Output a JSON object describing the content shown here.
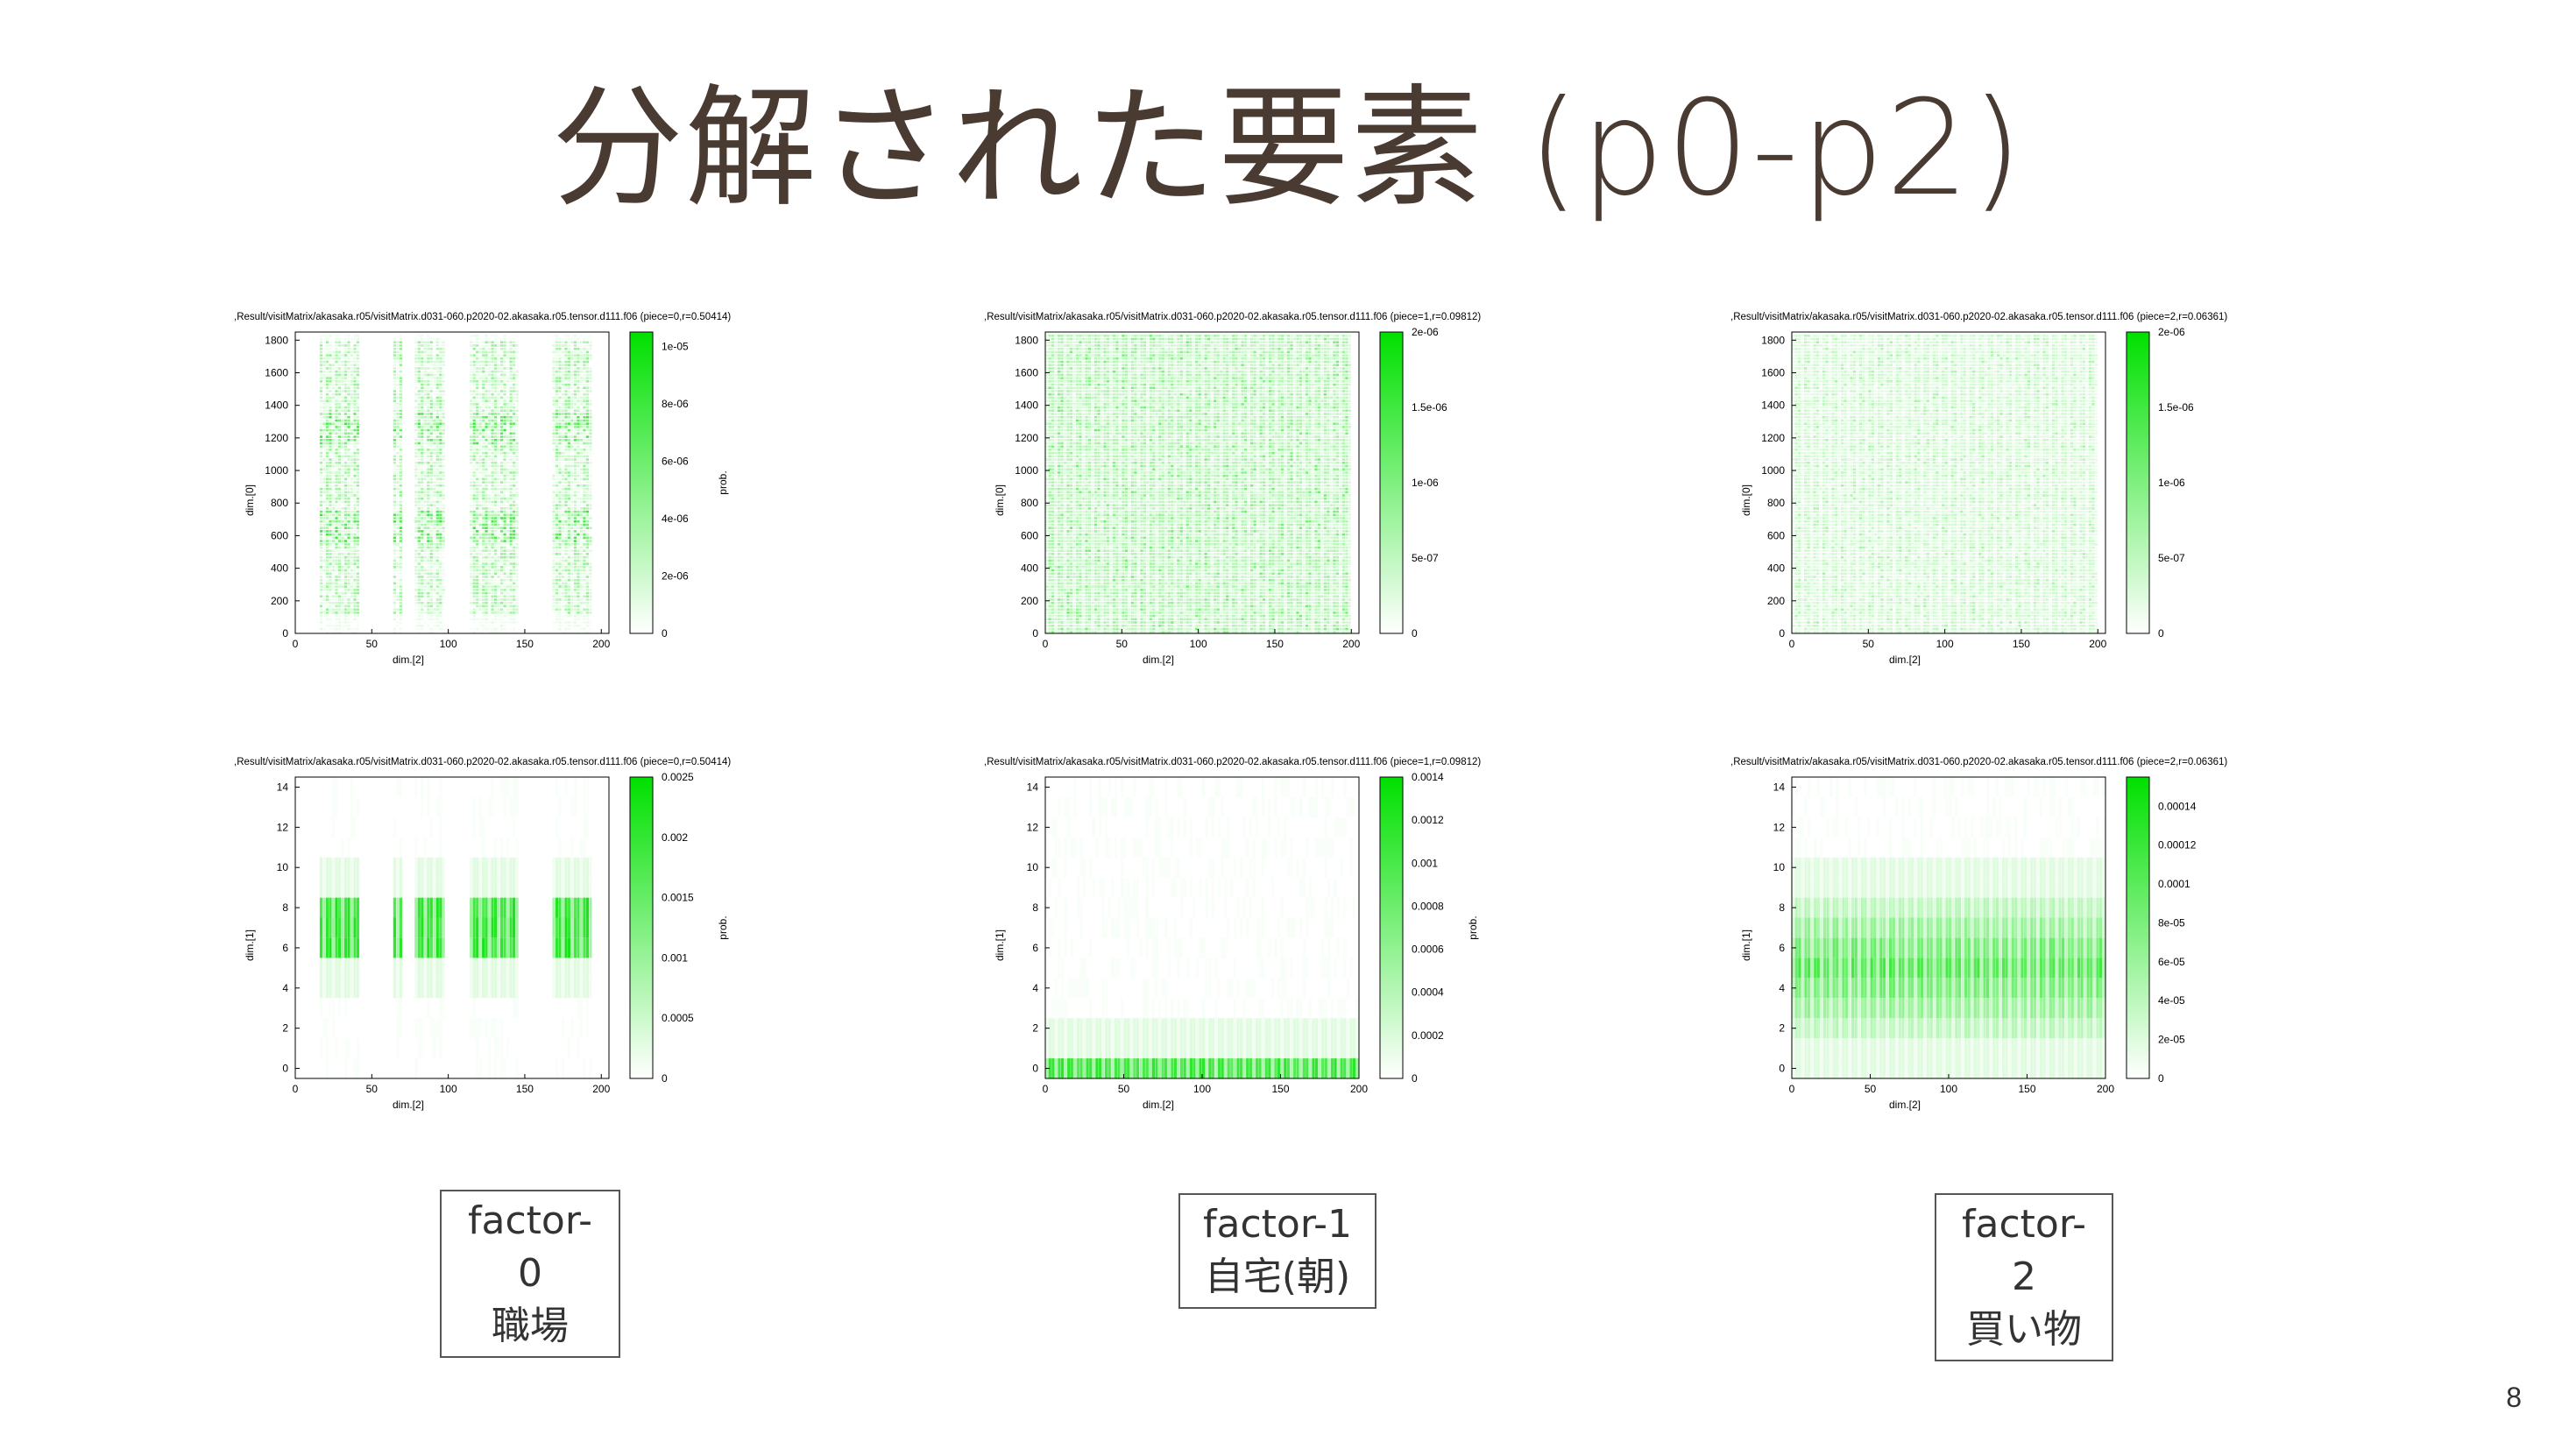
{
  "slide": {
    "title": "分解された要素 (p0-p2)",
    "page_number": "8"
  },
  "colors": {
    "heat_max": "#00e000",
    "heat_min": "#ffffff",
    "title": "#4a3b32"
  },
  "labels": [
    {
      "line1": "factor-0",
      "line2": "職場"
    },
    {
      "line1": "factor-1",
      "line2": "自宅(朝)"
    },
    {
      "line1": "factor-2",
      "line2": "買い物"
    }
  ],
  "chart_data": [
    {
      "type": "heatmap",
      "title": ",Result/visitMatrix/akasaka.r05/visitMatrix.d031-060.p2020-02.akasaka.r05.tensor.d111.f06 (piece=0,r=0.50414)",
      "xlabel": "dim.[2]",
      "ylabel": "dim.[0]",
      "colorbar_label": "prob.",
      "xlim": [
        0,
        205
      ],
      "ylim": [
        0,
        1850
      ],
      "xticks": [
        "0",
        "50",
        "100",
        "150",
        "200"
      ],
      "xtick_values": [
        0,
        50,
        100,
        150,
        200
      ],
      "yticks": [
        "0",
        "200",
        "400",
        "600",
        "800",
        "1000",
        "1200",
        "1400",
        "1600",
        "1800"
      ],
      "ytick_values": [
        0,
        200,
        400,
        600,
        800,
        1000,
        1200,
        1400,
        1600,
        1800
      ],
      "colorbar_ticks": [
        "1e-05",
        "8e-06",
        "6e-06",
        "4e-06",
        "2e-06",
        "0"
      ],
      "colorbar_values": [
        1e-05,
        8e-06,
        6e-06,
        4e-06,
        2e-06,
        0
      ],
      "colorbar_max": 1.05e-05,
      "column_groups": [
        [
          15,
          40
        ],
        [
          63,
          68
        ],
        [
          77,
          96
        ],
        [
          114,
          145
        ],
        [
          168,
          193
        ]
      ],
      "column_intensity": 0.55,
      "pattern": "striped-rows"
    },
    {
      "type": "heatmap",
      "title": ",Result/visitMatrix/akasaka.r05/visitMatrix.d031-060.p2020-02.akasaka.r05.tensor.d111.f06 (piece=1,r=0.09812)",
      "xlabel": "dim.[2]",
      "ylabel": "dim.[0]",
      "colorbar_label": "",
      "xlim": [
        0,
        205
      ],
      "ylim": [
        0,
        1850
      ],
      "xticks": [
        "0",
        "50",
        "100",
        "150",
        "200"
      ],
      "xtick_values": [
        0,
        50,
        100,
        150,
        200
      ],
      "yticks": [
        "0",
        "200",
        "400",
        "600",
        "800",
        "1000",
        "1200",
        "1400",
        "1600",
        "1800"
      ],
      "ytick_values": [
        0,
        200,
        400,
        600,
        800,
        1000,
        1200,
        1400,
        1600,
        1800
      ],
      "colorbar_ticks": [
        "2e-06",
        "1.5e-06",
        "1e-06",
        "5e-07",
        "0"
      ],
      "colorbar_values": [
        2e-06,
        1.5e-06,
        1e-06,
        5e-07,
        0
      ],
      "colorbar_max": 2e-06,
      "column_groups": [
        [
          0,
          200
        ]
      ],
      "column_intensity": 0.35,
      "pattern": "uniform-columns"
    },
    {
      "type": "heatmap",
      "title": ",Result/visitMatrix/akasaka.r05/visitMatrix.d031-060.p2020-02.akasaka.r05.tensor.d111.f06 (piece=2,r=0.06361)",
      "xlabel": "dim.[2]",
      "ylabel": "dim.[0]",
      "colorbar_label": "",
      "xlim": [
        0,
        205
      ],
      "ylim": [
        0,
        1850
      ],
      "xticks": [
        "0",
        "50",
        "100",
        "150",
        "200"
      ],
      "xtick_values": [
        0,
        50,
        100,
        150,
        200
      ],
      "yticks": [
        "0",
        "200",
        "400",
        "600",
        "800",
        "1000",
        "1200",
        "1400",
        "1600",
        "1800"
      ],
      "ytick_values": [
        0,
        200,
        400,
        600,
        800,
        1000,
        1200,
        1400,
        1600,
        1800
      ],
      "colorbar_ticks": [
        "2e-06",
        "1.5e-06",
        "1e-06",
        "5e-07",
        "0"
      ],
      "colorbar_values": [
        2e-06,
        1.5e-06,
        1e-06,
        5e-07,
        0
      ],
      "colorbar_max": 2e-06,
      "column_groups": [
        [
          0,
          200
        ]
      ],
      "column_intensity": 0.22,
      "pattern": "faint-columns"
    },
    {
      "type": "heatmap",
      "title": ",Result/visitMatrix/akasaka.r05/visitMatrix.d031-060.p2020-02.akasaka.r05.tensor.d111.f06 (piece=0,r=0.50414)",
      "xlabel": "dim.[2]",
      "ylabel": "dim.[1]",
      "colorbar_label": "prob.",
      "xlim": [
        0,
        205
      ],
      "ylim": [
        -0.5,
        14.5
      ],
      "xticks": [
        "0",
        "50",
        "100",
        "150",
        "200"
      ],
      "xtick_values": [
        0,
        50,
        100,
        150,
        200
      ],
      "yticks": [
        "0",
        "2",
        "4",
        "6",
        "8",
        "10",
        "12",
        "14"
      ],
      "ytick_values": [
        0,
        2,
        4,
        6,
        8,
        10,
        12,
        14
      ],
      "colorbar_ticks": [
        "0.0025",
        "0.002",
        "0.0015",
        "0.001",
        "0.0005",
        "0"
      ],
      "colorbar_values": [
        0.0025,
        0.002,
        0.0015,
        0.001,
        0.0005,
        0
      ],
      "colorbar_max": 0.0025,
      "column_groups": [
        [
          15,
          40
        ],
        [
          63,
          68
        ],
        [
          77,
          96
        ],
        [
          114,
          145
        ],
        [
          168,
          193
        ]
      ],
      "band": [
        5.5,
        8.5
      ],
      "column_intensity": 0.9,
      "pattern": "band"
    },
    {
      "type": "heatmap",
      "title": ",Result/visitMatrix/akasaka.r05/visitMatrix.d031-060.p2020-02.akasaka.r05.tensor.d111.f06 (piece=1,r=0.09812)",
      "xlabel": "dim.[2]",
      "ylabel": "dim.[1]",
      "colorbar_label": "prob.",
      "xlim": [
        0,
        200
      ],
      "ylim": [
        -0.5,
        14.5
      ],
      "xticks": [
        "0",
        "50",
        "100",
        "150",
        "200"
      ],
      "xtick_values": [
        0,
        50,
        100,
        150,
        200
      ],
      "yticks": [
        "0",
        "2",
        "4",
        "6",
        "8",
        "10",
        "12",
        "14"
      ],
      "ytick_values": [
        0,
        2,
        4,
        6,
        8,
        10,
        12,
        14
      ],
      "colorbar_ticks": [
        "0.0014",
        "0.0012",
        "0.001",
        "0.0008",
        "0.0006",
        "0.0004",
        "0.0002",
        "0"
      ],
      "colorbar_values": [
        0.0014,
        0.0012,
        0.001,
        0.0008,
        0.0006,
        0.0004,
        0.0002,
        0
      ],
      "colorbar_max": 0.0014,
      "column_groups": [
        [
          0,
          200
        ]
      ],
      "band": [
        -0.5,
        0.5
      ],
      "column_intensity": 0.85,
      "pattern": "band"
    },
    {
      "type": "heatmap",
      "title": ",Result/visitMatrix/akasaka.r05/visitMatrix.d031-060.p2020-02.akasaka.r05.tensor.d111.f06 (piece=2,r=0.06361)",
      "xlabel": "dim.[2]",
      "ylabel": "dim.[1]",
      "colorbar_label": "",
      "xlim": [
        0,
        200
      ],
      "ylim": [
        -0.5,
        14.5
      ],
      "xticks": [
        "0",
        "50",
        "100",
        "150",
        "200"
      ],
      "xtick_values": [
        0,
        50,
        100,
        150,
        200
      ],
      "yticks": [
        "0",
        "2",
        "4",
        "6",
        "8",
        "10",
        "12",
        "14"
      ],
      "ytick_values": [
        0,
        2,
        4,
        6,
        8,
        10,
        12,
        14
      ],
      "colorbar_ticks": [
        "0.00014",
        "0.00012",
        "0.0001",
        "8e-05",
        "6e-05",
        "4e-05",
        "2e-05",
        "0"
      ],
      "colorbar_values": [
        0.00014,
        0.00012,
        0.0001,
        8e-05,
        6e-05,
        4e-05,
        2e-05,
        0
      ],
      "colorbar_max": 0.000155,
      "column_groups": [
        [
          0,
          200
        ]
      ],
      "band": [
        1.5,
        8.5
      ],
      "column_intensity": 0.75,
      "pattern": "wide-band"
    }
  ]
}
